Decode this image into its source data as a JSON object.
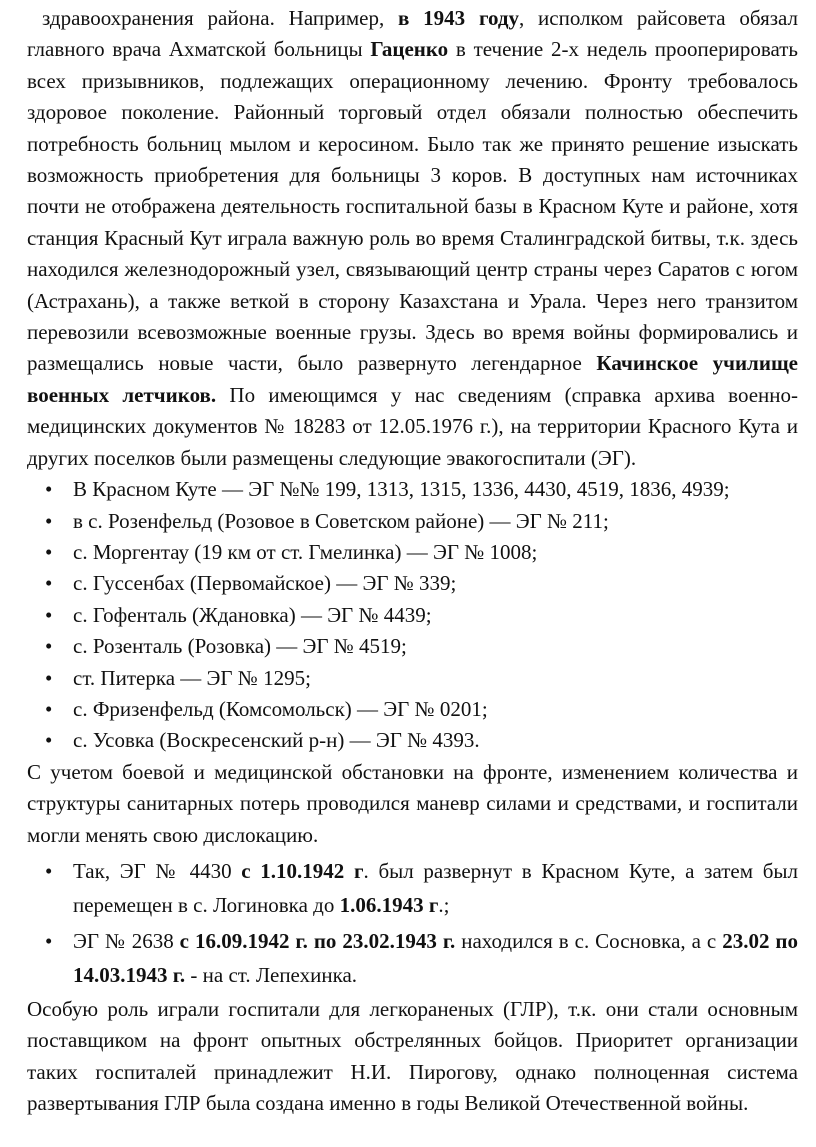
{
  "paragraph1": [
    "здравоохранения района. Например, ",
    "в 1943 году",
    ", исполком райсовета обязал главного врача Ахматской больницы ",
    "Гаценко",
    " в течение 2-х недель прооперировать всех призывников, подлежащих операционному лечению. Фронту требовалось здоровое поколение. Районный торговый отдел обязали полностью обеспечить потребность больниц мылом и керосином. Было так же принято решение изыскать возможность приобретения для больницы 3 коров.  В доступных нам источниках почти не отображена деятельность госпитальной базы в Красном Куте и районе, хотя станция Красный Кут играла важную роль во время Сталинградской битвы, т.к. здесь находился железнодорожный узел, связывающий центр страны через Саратов с югом (Астрахань), а также веткой в сторону Казахстана и Урала. Через него транзитом перевозили всевозможные военные грузы. Здесь во время войны формировались и размещались новые части, было развернуто легендарное ",
    "Качинское училище военных летчиков.",
    " По имеющимся у нас сведениям (справка архива военно-медицинских документов № 18283 от 12.05.1976 г.), на территории Красного Кута и других поселков были размещены следующие эвакогоспитали (ЭГ)."
  ],
  "bullet_char": "•",
  "list1": [
    "В Красном Куте — ЭГ №№ 199, 1313, 1315, 1336, 4430, 4519, 1836, 4939;",
    "в с. Розенфельд (Розовое в Советском районе) — ЭГ № 211;",
    "с. Моргентау (19 км от ст. Гмелинка) — ЭГ № 1008;",
    "с. Гуссенбах (Первомайское) — ЭГ № 339;",
    "с. Гофенталь (Ждановка) — ЭГ № 4439;",
    "с. Розенталь (Розовка) — ЭГ № 4519;",
    "ст. Питерка — ЭГ № 1295;",
    "с. Фризенфельд (Комсомольск) — ЭГ № 0201;",
    "с. Усовка (Воскресенский р-н) — ЭГ № 4393."
  ],
  "paragraph2": "С учетом боевой и медицинской обстановки на фронте, изменением количества и структуры санитарных потерь проводился маневр силами и средствами, и госпитали могли менять свою дислокацию.",
  "list2": [
    [
      "Так, ЭГ № 4430 ",
      "с 1.10.1942 г",
      ". был развернут в Красном Куте, а затем был перемещен в с. Логиновка до ",
      "1.06.1943 г",
      ".;"
    ],
    [
      "ЭГ № 2638 ",
      "с 16.09.1942 г. по 23.02.1943 г.",
      " находился в с. Сосновка, а с ",
      "23.02 по 14.03.1943 г.",
      " - на ст. Лепехинка."
    ]
  ],
  "paragraph3": "Особую роль играли госпитали для легкораненых (ГЛР), т.к. они стали основным поставщиком на фронт опытных обстрелянных бойцов. Приоритет организации таких госпиталей принадлежит Н.И. Пирогову, однако полноценная система развертывания ГЛР была создана именно в годы Великой Отечественной войны."
}
